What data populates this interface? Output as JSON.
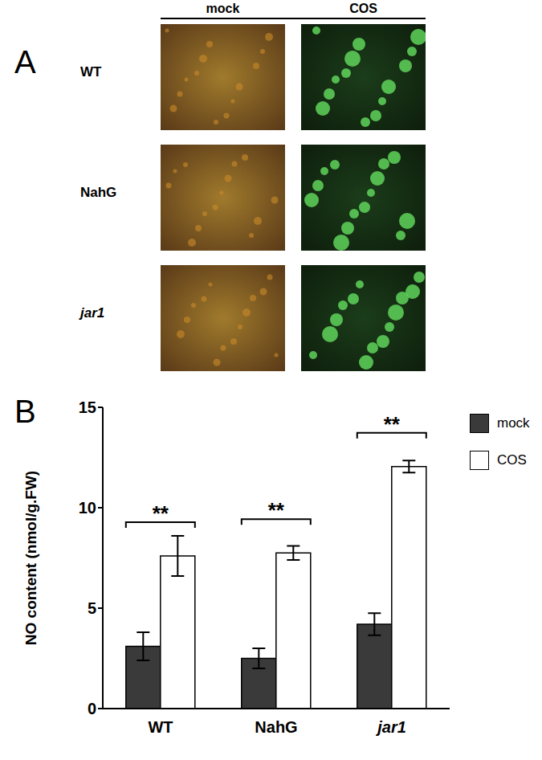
{
  "panel_a": {
    "label": "A",
    "columns": [
      "mock",
      "COS"
    ],
    "rows": [
      "WT",
      "NahG",
      "jar1"
    ]
  },
  "panel_b_label": "B",
  "chart_data": {
    "type": "bar",
    "categories": [
      "WT",
      "NahG",
      "jar1"
    ],
    "series": [
      {
        "name": "mock",
        "color": "#3a3a3a",
        "values": [
          3.1,
          2.5,
          4.2
        ],
        "errors": [
          0.7,
          0.5,
          0.55
        ]
      },
      {
        "name": "COS",
        "color": "#ffffff",
        "values": [
          7.6,
          7.75,
          12.05
        ],
        "errors": [
          1.0,
          0.35,
          0.3
        ]
      }
    ],
    "y_label": "NO content (nmol/g.FW)",
    "ylim": [
      0,
      15
    ],
    "yticks": [
      0,
      5,
      10,
      15
    ],
    "legend": "upper right",
    "annotations": [
      {
        "category": "WT",
        "text": "**"
      },
      {
        "category": "NahG",
        "text": "**"
      },
      {
        "category": "jar1",
        "text": "**"
      }
    ]
  }
}
